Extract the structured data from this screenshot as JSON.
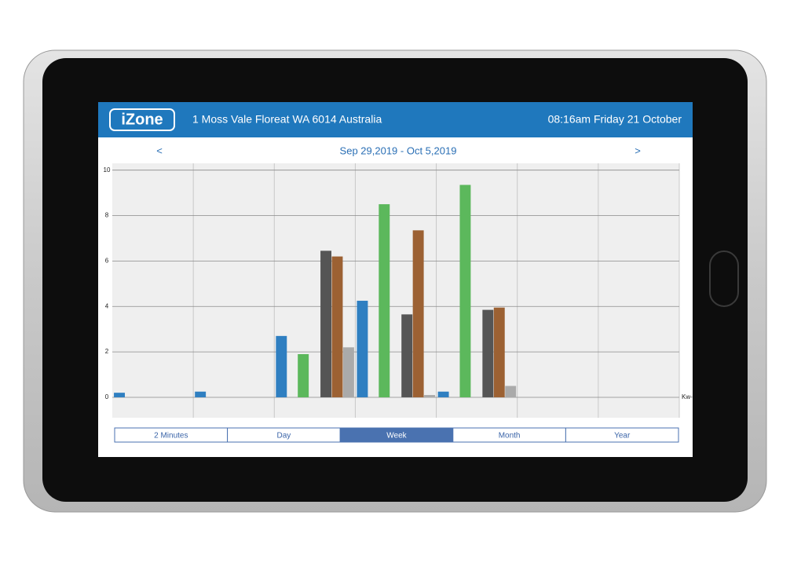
{
  "header": {
    "logo": "iZone",
    "address": "1 Moss Vale Floreat WA 6014 Australia",
    "datetime": "08:16am Friday 21 October"
  },
  "nav": {
    "prev": "<",
    "range": "Sep 29,2019 - Oct 5,2019",
    "next": ">"
  },
  "chart_data": {
    "type": "bar",
    "unit_label": "Kw-h",
    "categories": [
      null,
      null,
      null,
      null,
      null,
      null,
      null
    ],
    "series": [
      {
        "color": "#2f7fc1",
        "values": [
          0.2,
          0.25,
          2.7,
          4.25,
          0.25,
          null,
          null
        ]
      },
      {
        "color": "#5cb85c",
        "values": [
          null,
          null,
          1.9,
          8.5,
          9.35,
          null,
          null
        ]
      },
      {
        "color": "#555555",
        "values": [
          null,
          null,
          6.45,
          3.65,
          3.85,
          null,
          null
        ]
      },
      {
        "color": "#9c6133",
        "values": [
          null,
          null,
          6.2,
          7.35,
          3.95,
          null,
          null
        ]
      },
      {
        "color": "#aaaaaa",
        "values": [
          null,
          null,
          2.2,
          0.1,
          0.5,
          null,
          null
        ]
      }
    ],
    "ylim": [
      -0.9,
      10.3
    ],
    "yticks": [
      0,
      2,
      4,
      6,
      8,
      10
    ],
    "grid": true
  },
  "tabs": [
    {
      "label": "2 Minutes",
      "selected": false
    },
    {
      "label": "Day",
      "selected": false
    },
    {
      "label": "Week",
      "selected": true
    },
    {
      "label": "Month",
      "selected": false
    },
    {
      "label": "Year",
      "selected": false
    }
  ]
}
